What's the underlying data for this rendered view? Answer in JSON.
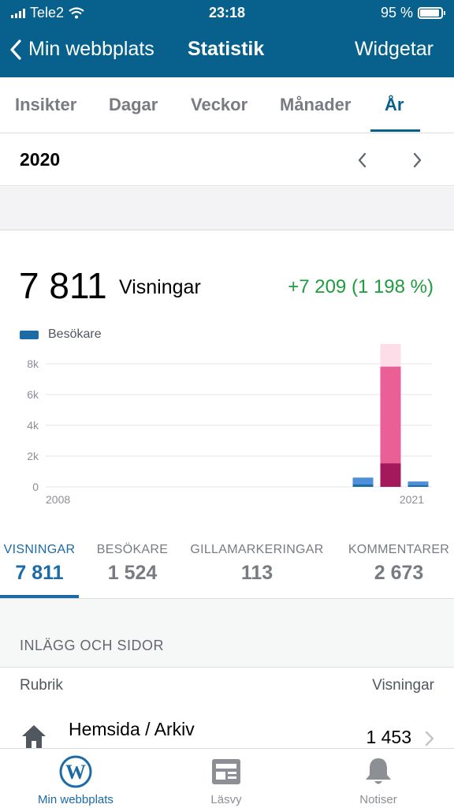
{
  "status": {
    "carrier": "Tele2",
    "time": "23:18",
    "battery": "95 %"
  },
  "nav": {
    "back_label": "Min webbplats",
    "title": "Statistik",
    "right_label": "Widgetar"
  },
  "tabs": [
    {
      "label": "Insikter"
    },
    {
      "label": "Dagar"
    },
    {
      "label": "Veckor"
    },
    {
      "label": "Månader"
    },
    {
      "label": "År",
      "active": true
    }
  ],
  "period": {
    "year": "2020"
  },
  "summary": {
    "value": "7 811",
    "label": "Visningar",
    "change": "+7 209 (1 198 %)"
  },
  "legend": {
    "label": "Besökare",
    "color": "#1c6aa6"
  },
  "chart_data": {
    "type": "bar",
    "categories": [
      "2008",
      "2009",
      "2010",
      "2011",
      "2012",
      "2013",
      "2014",
      "2015",
      "2016",
      "2017",
      "2018",
      "2019",
      "2020",
      "2021"
    ],
    "x_tick_labels": [
      "2008",
      "2021"
    ],
    "y_ticks": [
      "0",
      "2k",
      "4k",
      "6k",
      "8k"
    ],
    "ylim": [
      0,
      8000
    ],
    "series": [
      {
        "name": "Besökare",
        "values": [
          0,
          0,
          0,
          0,
          0,
          0,
          0,
          0,
          0,
          0,
          0,
          150,
          1524,
          100
        ],
        "color": "#1c6aa6"
      },
      {
        "values": [
          0,
          0,
          0,
          0,
          0,
          0,
          0,
          0,
          0,
          0,
          0,
          602,
          7811,
          350
        ],
        "color": "#4d90d9"
      }
    ],
    "selected_category": "2020",
    "selected_colors": {
      "visitors": "#a3195b",
      "views": "#ea6096",
      "highlight": "#fcdde8"
    },
    "grid": true
  },
  "metrics": [
    {
      "label": "VISNINGAR",
      "value": "7 811",
      "active": true
    },
    {
      "label": "BESÖKARE",
      "value": "1 524"
    },
    {
      "label": "GILLAMARKERINGAR",
      "value": "113"
    },
    {
      "label": "KOMMENTARER",
      "value": "2 673"
    }
  ],
  "posts": {
    "section_title": "INLÄGG OCH SIDOR",
    "col_title": "Rubrik",
    "col_views": "Visningar",
    "rows": [
      {
        "icon": "house-icon",
        "title": "Hemsida / Arkiv",
        "views": "1 453"
      }
    ]
  },
  "tabbar": [
    {
      "label": "Min webbplats",
      "icon": "wordpress-icon",
      "active": true
    },
    {
      "label": "Läsvy",
      "icon": "reader-icon"
    },
    {
      "label": "Notiser",
      "icon": "bell-icon"
    }
  ],
  "colors": {
    "brand": "#08618c",
    "accent": "#1c6aa6",
    "positive": "#1f9c3e"
  }
}
